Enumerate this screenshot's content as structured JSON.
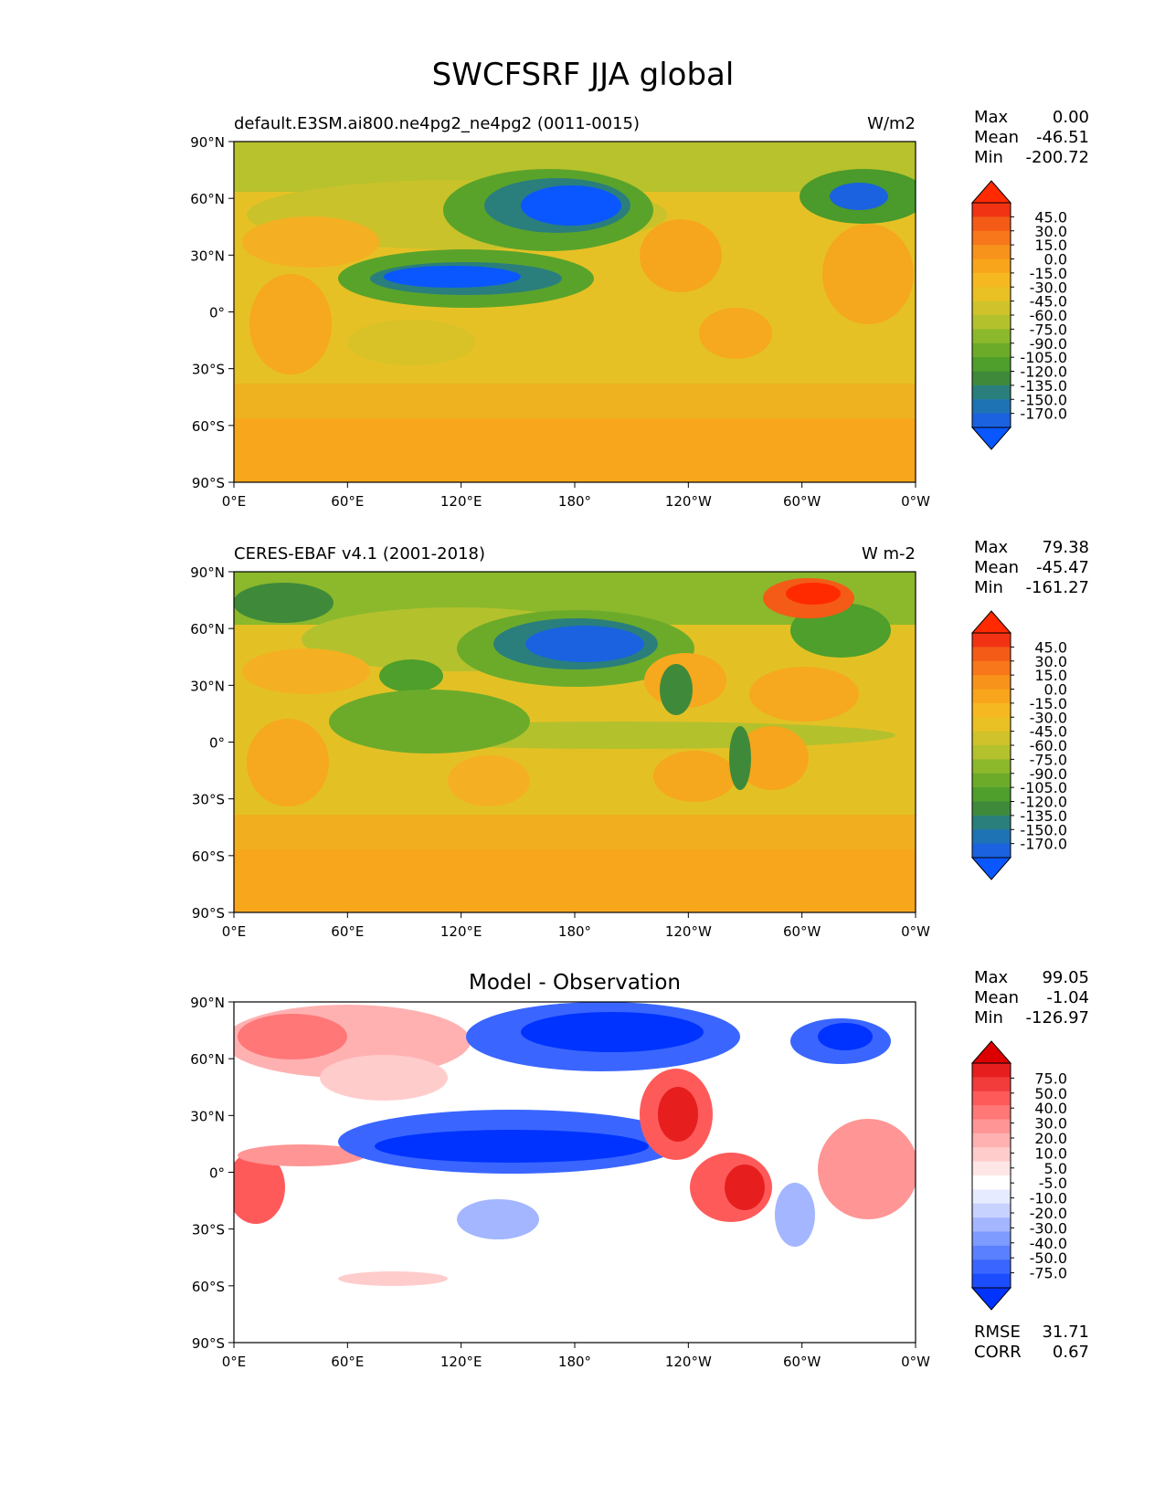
{
  "figure": {
    "title": "SWCFSRF JJA global"
  },
  "axes": {
    "lat_ticks": [
      "90°N",
      "60°N",
      "30°N",
      "0°",
      "30°S",
      "60°S",
      "90°S"
    ],
    "lon_ticks": [
      "0°E",
      "60°E",
      "120°E",
      "180°",
      "120°W",
      "60°W",
      "0°W"
    ]
  },
  "colormaps": {
    "abs": [
      "#0a57ff",
      "#1a62df",
      "#1e73b5",
      "#2a7f7c",
      "#3f8a3a",
      "#4e9f2b",
      "#6cab2a",
      "#8cb82c",
      "#b3c12d",
      "#cfc22a",
      "#e9c124",
      "#f6b820",
      "#f8a51c",
      "#f7921b",
      "#f7771a",
      "#f45b17",
      "#f13314",
      "#ff2a00"
    ],
    "diff": [
      "#0033ff",
      "#1c4dff",
      "#3a66ff",
      "#5b80ff",
      "#7e9bff",
      "#a3b6ff",
      "#c8d2ff",
      "#e6ebff",
      "#ffffff",
      "#ffe6e6",
      "#ffcccc",
      "#ffb1b1",
      "#ff9595",
      "#ff7777",
      "#ff5a5a",
      "#f23b3b",
      "#e61e1e",
      "#dd0000"
    ]
  },
  "chart_data": [
    {
      "type": "heatmap",
      "title_left": "default.E3SM.ai800.ne4pg2_ne4pg2 (0011-0015)",
      "title_right": "W/m2",
      "stats": [
        {
          "label": "Max",
          "value": "0.00"
        },
        {
          "label": "Mean",
          "value": "-46.51"
        },
        {
          "label": "Min",
          "value": "-200.72"
        }
      ],
      "colorbar_levels": [
        "45.0",
        "30.0",
        "15.0",
        "0.0",
        "-15.0",
        "-30.0",
        "-45.0",
        "-60.0",
        "-75.0",
        "-90.0",
        "-105.0",
        "-120.0",
        "-135.0",
        "-150.0",
        "-170.0"
      ],
      "xlim": [
        0,
        360
      ],
      "ylim": [
        -90,
        90
      ],
      "lat": [
        75,
        45,
        15,
        -15,
        -45,
        -75
      ],
      "lon": [
        "0-60E",
        "60-120E",
        "120E-180",
        "180-120W",
        "120W-60W",
        "60W-0W"
      ],
      "values_approx": [
        [
          -75,
          -60,
          -60,
          -75,
          -45,
          -90
        ],
        [
          -30,
          -45,
          -150,
          -120,
          -45,
          -60
        ],
        [
          -30,
          -140,
          -120,
          -45,
          -20,
          -20
        ],
        [
          -20,
          -45,
          -45,
          -40,
          -20,
          -20
        ],
        [
          -30,
          -30,
          -30,
          -30,
          -30,
          -30
        ],
        [
          -10,
          -10,
          -10,
          -10,
          -10,
          -10
        ]
      ]
    },
    {
      "type": "heatmap",
      "title_left": "CERES-EBAF v4.1 (2001-2018)",
      "title_right": "W m-2",
      "stats": [
        {
          "label": "Max",
          "value": "79.38"
        },
        {
          "label": "Mean",
          "value": "-45.47"
        },
        {
          "label": "Min",
          "value": "-161.27"
        }
      ],
      "colorbar_levels": [
        "45.0",
        "30.0",
        "15.0",
        "0.0",
        "-15.0",
        "-30.0",
        "-45.0",
        "-60.0",
        "-75.0",
        "-90.0",
        "-105.0",
        "-120.0",
        "-135.0",
        "-150.0",
        "-170.0"
      ],
      "xlim": [
        0,
        360
      ],
      "ylim": [
        -90,
        90
      ],
      "lat": [
        75,
        45,
        15,
        -15,
        -45,
        -75
      ],
      "lon": [
        "0-60E",
        "60-120E",
        "120E-180",
        "180-120W",
        "120W-60W",
        "60W-0W"
      ],
      "values_approx": [
        [
          -110,
          -75,
          -90,
          -90,
          -60,
          30
        ],
        [
          -30,
          -45,
          -130,
          -90,
          -45,
          -40
        ],
        [
          -60,
          -90,
          -75,
          -60,
          -40,
          -20
        ],
        [
          -15,
          -45,
          -45,
          -40,
          -20,
          -20
        ],
        [
          -30,
          -30,
          -30,
          -30,
          -30,
          -30
        ],
        [
          -10,
          -10,
          -10,
          -10,
          -10,
          -10
        ]
      ]
    },
    {
      "type": "heatmap",
      "title_center": "Model - Observation",
      "stats": [
        {
          "label": "Max",
          "value": "99.05"
        },
        {
          "label": "Mean",
          "value": "-1.04"
        },
        {
          "label": "Min",
          "value": "-126.97"
        }
      ],
      "colorbar_levels": [
        "75.0",
        "50.0",
        "40.0",
        "30.0",
        "20.0",
        "10.0",
        "5.0",
        "-5.0",
        "-10.0",
        "-20.0",
        "-30.0",
        "-40.0",
        "-50.0",
        "-75.0"
      ],
      "metrics": [
        {
          "label": "RMSE",
          "value": "31.71"
        },
        {
          "label": "CORR",
          "value": "0.67"
        }
      ],
      "xlim": [
        0,
        360
      ],
      "ylim": [
        -90,
        90
      ],
      "lat": [
        75,
        45,
        15,
        -15,
        -45,
        -75
      ],
      "lon": [
        "0-60E",
        "60-120E",
        "120E-180",
        "180-120W",
        "120W-60W",
        "60W-0W"
      ],
      "values_approx": [
        [
          40,
          40,
          -50,
          -75,
          -10,
          -50
        ],
        [
          30,
          10,
          -40,
          50,
          20,
          20
        ],
        [
          20,
          -75,
          -75,
          60,
          30,
          10
        ],
        [
          50,
          0,
          10,
          20,
          60,
          40
        ],
        [
          10,
          0,
          0,
          0,
          10,
          0
        ],
        [
          0,
          0,
          0,
          0,
          0,
          0
        ]
      ]
    }
  ]
}
